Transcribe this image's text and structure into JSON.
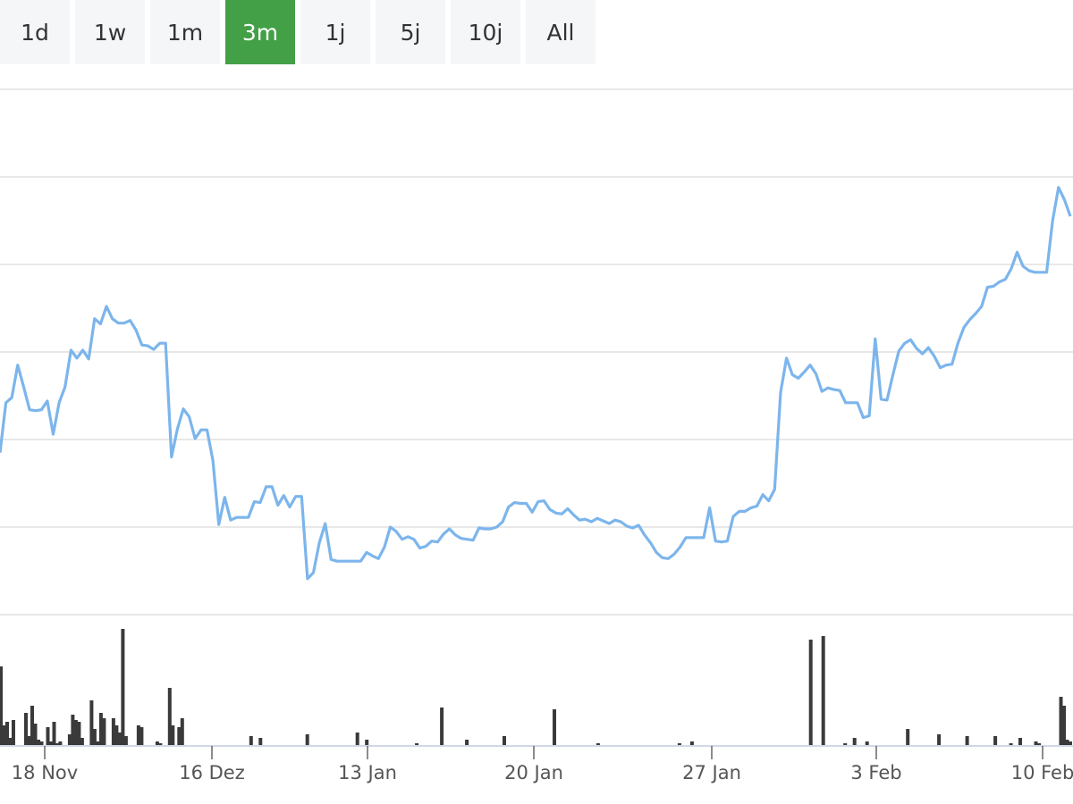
{
  "range_tabs": {
    "items": [
      {
        "label": "1d",
        "active": false
      },
      {
        "label": "1w",
        "active": false
      },
      {
        "label": "1m",
        "active": false
      },
      {
        "label": "3m",
        "active": true
      },
      {
        "label": "1j",
        "active": false
      },
      {
        "label": "5j",
        "active": false
      },
      {
        "label": "10j",
        "active": false
      },
      {
        "label": "All",
        "active": false
      }
    ]
  },
  "colors": {
    "accent": "#43a047",
    "line": "#7cb5ec",
    "volume": "#3a3a3a",
    "grid": "#e0e0e0"
  },
  "chart_data": {
    "type": "line",
    "title": "",
    "xlabel": "",
    "ylabel": "",
    "grid": true,
    "x_tick_labels": [
      "18 Nov",
      "16 Dez",
      "13 Jan",
      "20 Jan",
      "27 Jan",
      "3 Feb",
      "10 Feb"
    ],
    "series": [
      {
        "type": "line",
        "values": [
          4.85,
          5.42,
          5.48,
          5.85,
          5.6,
          5.34,
          5.33,
          5.34,
          5.44,
          5.06,
          5.42,
          5.6,
          6.02,
          5.93,
          6.02,
          5.92,
          6.38,
          6.32,
          6.52,
          6.38,
          6.33,
          6.33,
          6.36,
          6.25,
          6.08,
          6.07,
          6.03,
          6.1,
          6.1,
          4.8,
          5.12,
          5.35,
          5.26,
          5.01,
          5.11,
          5.11,
          4.76,
          4.03,
          4.34,
          4.08,
          4.11,
          4.11,
          4.11,
          4.29,
          4.28,
          4.46,
          4.46,
          4.25,
          4.36,
          4.23,
          4.35,
          4.35,
          3.41,
          3.48,
          3.82,
          4.04,
          3.63,
          3.61,
          3.61,
          3.61,
          3.61,
          3.61,
          3.71,
          3.67,
          3.64,
          3.77,
          4.0,
          3.95,
          3.86,
          3.89,
          3.86,
          3.76,
          3.78,
          3.84,
          3.83,
          3.92,
          3.98,
          3.91,
          3.87,
          3.86,
          3.85,
          3.99,
          3.98,
          3.98,
          4.0,
          4.06,
          4.23,
          4.28,
          4.27,
          4.27,
          4.17,
          4.29,
          4.3,
          4.2,
          4.16,
          4.15,
          4.21,
          4.14,
          4.08,
          4.09,
          4.06,
          4.1,
          4.07,
          4.04,
          4.08,
          4.06,
          4.01,
          3.99,
          4.02,
          3.91,
          3.82,
          3.71,
          3.65,
          3.64,
          3.69,
          3.77,
          3.88,
          3.88,
          3.88,
          3.88,
          4.22,
          3.84,
          3.83,
          3.84,
          4.12,
          4.18,
          4.18,
          4.22,
          4.24,
          4.37,
          4.3,
          4.43,
          5.54,
          5.93,
          5.74,
          5.7,
          5.77,
          5.85,
          5.75,
          5.55,
          5.59,
          5.57,
          5.56,
          5.42,
          5.42,
          5.42,
          5.25,
          5.27,
          6.15,
          5.46,
          5.45,
          5.74,
          6.01,
          6.1,
          6.14,
          6.04,
          5.98,
          6.05,
          5.95,
          5.82,
          5.85,
          5.86,
          6.1,
          6.28,
          6.37,
          6.44,
          6.52,
          6.74,
          6.75,
          6.8,
          6.83,
          6.95,
          7.14,
          6.98,
          6.93,
          6.91,
          6.91,
          6.91,
          7.5,
          7.88,
          7.74,
          7.55
        ]
      },
      {
        "type": "volume",
        "values": [
          44,
          11,
          13,
          4,
          14,
          0,
          0,
          0,
          18,
          5,
          22,
          12,
          3,
          2,
          0,
          10,
          2,
          13,
          1,
          2,
          0,
          0,
          6,
          17,
          14,
          13,
          4,
          0,
          0,
          25,
          9,
          2,
          18,
          15,
          0,
          0,
          15,
          11,
          7,
          65,
          5,
          0,
          0,
          0,
          11,
          10,
          0,
          0,
          0,
          0,
          2,
          1,
          0,
          0,
          32,
          11,
          0,
          10,
          15,
          0,
          0,
          0,
          0,
          0,
          0,
          0,
          0,
          0,
          0,
          0,
          0,
          0,
          0,
          0,
          0,
          0,
          0,
          0,
          0,
          0,
          5,
          0,
          0,
          4,
          0,
          0,
          0,
          0,
          0,
          0,
          0,
          0,
          0,
          0,
          0,
          0,
          0,
          0,
          6,
          0,
          0,
          0,
          0,
          0,
          0,
          0,
          0,
          0,
          0,
          0,
          0,
          0,
          0,
          0,
          7,
          0,
          0,
          3,
          0,
          0,
          0,
          0,
          0,
          0,
          0,
          0,
          0,
          0,
          0,
          0,
          0,
          0,
          0,
          1,
          0,
          0,
          0,
          0,
          0,
          0,
          0,
          21,
          0,
          0,
          0,
          0,
          0,
          0,
          0,
          3,
          0,
          0,
          0,
          0,
          0,
          0,
          0,
          0,
          0,
          0,
          0,
          5,
          0,
          0,
          0,
          0,
          0,
          0,
          0,
          0,
          0,
          0,
          0,
          0,
          0,
          0,
          0,
          20,
          0,
          0,
          0,
          0,
          0,
          0,
          0,
          0,
          0,
          0,
          0,
          0,
          0,
          1,
          0,
          0,
          0,
          0,
          0,
          0,
          0,
          0,
          0,
          0,
          0,
          0,
          0,
          0,
          0,
          0,
          0,
          0,
          0,
          0,
          0,
          0,
          0,
          0,
          0,
          1,
          0,
          0,
          0,
          2,
          0,
          0,
          0,
          0,
          0,
          0,
          0,
          0,
          0,
          0,
          0,
          0,
          0,
          0,
          0,
          0,
          0,
          0,
          0,
          0,
          0,
          0,
          0,
          0,
          0,
          0,
          0,
          0,
          0,
          0,
          0,
          0,
          0,
          0,
          0,
          0,
          0,
          59,
          0,
          0,
          0,
          61,
          0,
          0,
          0,
          0,
          0,
          0,
          1,
          0,
          0,
          4,
          0,
          0,
          0,
          2,
          0,
          0,
          0,
          0,
          0,
          0,
          0,
          0,
          0,
          0,
          0,
          0,
          9,
          0,
          0,
          0,
          0,
          0,
          0,
          0,
          0,
          0,
          6,
          0,
          0,
          0,
          0,
          0,
          0,
          0,
          0,
          5,
          0,
          0,
          0,
          0,
          0,
          0,
          0,
          0,
          5,
          0,
          0,
          0,
          0,
          1,
          0,
          0,
          4,
          0,
          0,
          0,
          0,
          2,
          1,
          0,
          0,
          0,
          0,
          0,
          0,
          27,
          22,
          3,
          2
        ]
      }
    ]
  }
}
